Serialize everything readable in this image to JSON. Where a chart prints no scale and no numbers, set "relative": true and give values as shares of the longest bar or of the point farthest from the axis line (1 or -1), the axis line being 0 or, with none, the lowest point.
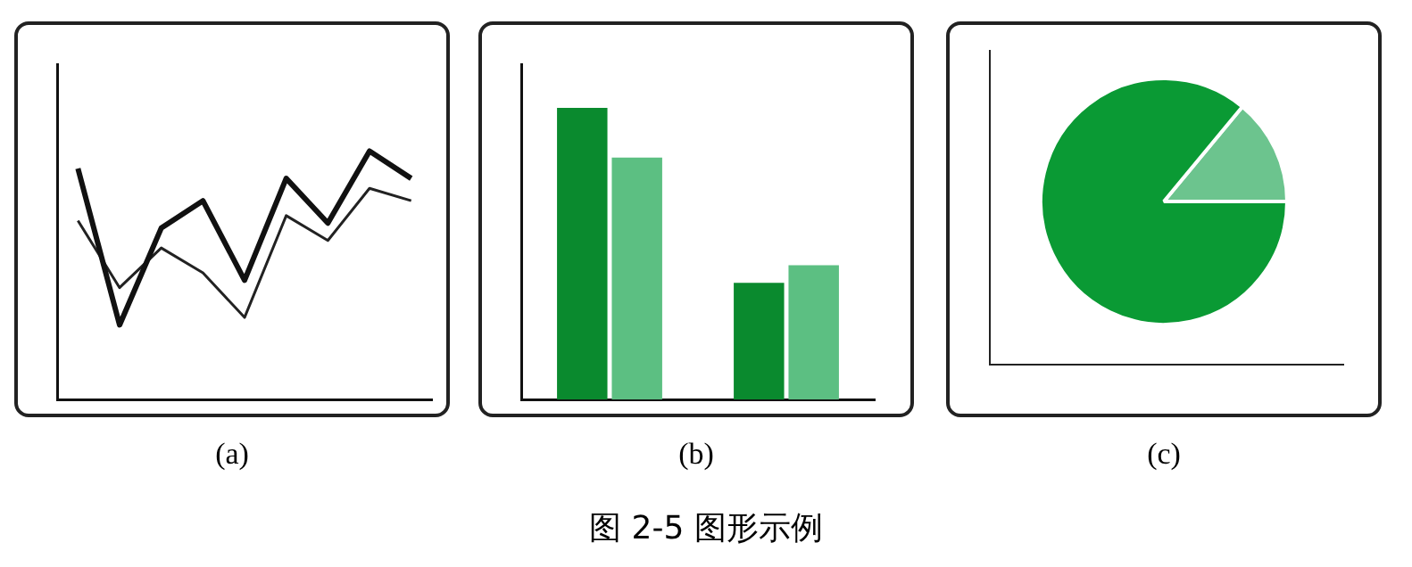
{
  "chart_data": [
    {
      "type": "line",
      "relative": true,
      "categories": [
        null,
        null,
        null,
        null,
        null,
        null,
        null,
        null,
        null
      ],
      "legend": false,
      "grid": false,
      "marker": "none",
      "annotations": [
        "(a)"
      ],
      "series": [
        {
          "color": "#111111",
          "values": [
            0.93,
            0.3,
            0.69,
            0.8,
            0.48,
            0.89,
            0.71,
            1,
            0.89
          ]
        },
        {
          "color": "#222222",
          "values": [
            0.72,
            0.45,
            0.61,
            0.51,
            0.33,
            0.74,
            0.64,
            0.85,
            0.8
          ]
        }
      ]
    },
    {
      "type": "bar",
      "relative": true,
      "categories": [
        null,
        null
      ],
      "legend": false,
      "grid": false,
      "annotations": [
        "(b)"
      ],
      "series": [
        {
          "color": "#0a8a2e",
          "values": [
            1,
            0.4
          ]
        },
        {
          "color": "#5cbf82",
          "values": [
            0.83,
            0.46
          ]
        }
      ]
    },
    {
      "type": "pie",
      "categories": [
        null,
        null
      ],
      "values": [
        14,
        86
      ],
      "colors": [
        "#6cc48e",
        "#0a9a34"
      ],
      "legend": false,
      "annotations": [
        "(c)"
      ]
    },
    {
      "type": "other",
      "title": "图 2-5    图形示例"
    }
  ]
}
